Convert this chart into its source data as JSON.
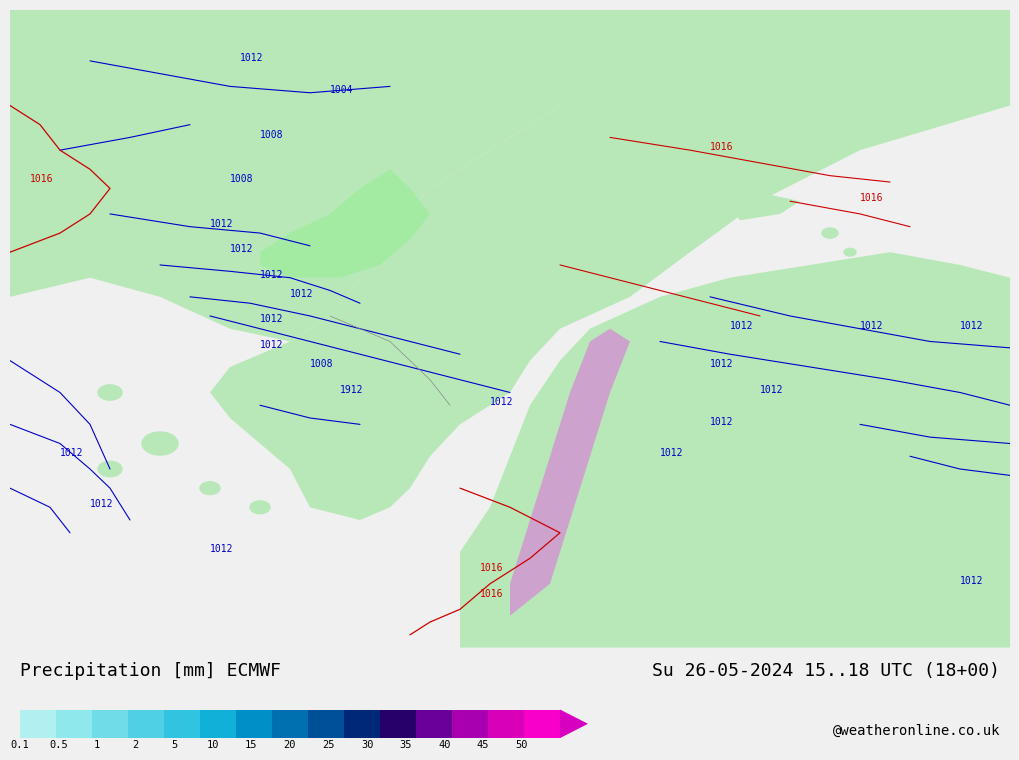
{
  "title_left": "Precipitation [mm] ECMWF",
  "title_right": "Su 26-05-2024 15..18 UTC (18+00)",
  "watermark": "@weatheronline.co.uk",
  "colorbar_values": [
    0.1,
    0.5,
    1,
    2,
    5,
    10,
    15,
    20,
    25,
    30,
    35,
    40,
    45,
    50
  ],
  "colorbar_colors": [
    "#b0f0f0",
    "#90e0e8",
    "#70d0e0",
    "#50c0d8",
    "#30b0d0",
    "#1090c8",
    "#0070b0",
    "#005098",
    "#003080",
    "#200060",
    "#600090",
    "#a000b0",
    "#d000b0",
    "#f000c0",
    "#ff00ff"
  ],
  "background_color": "#f0f0f0",
  "map_bg_color": "#b8e8b8",
  "ocean_color": "#dcdcdc",
  "contour_color_blue": "#0000cc",
  "contour_color_red": "#cc0000",
  "bottom_bar_color": "#e8e8e8",
  "title_fontsize": 13,
  "watermark_fontsize": 10
}
